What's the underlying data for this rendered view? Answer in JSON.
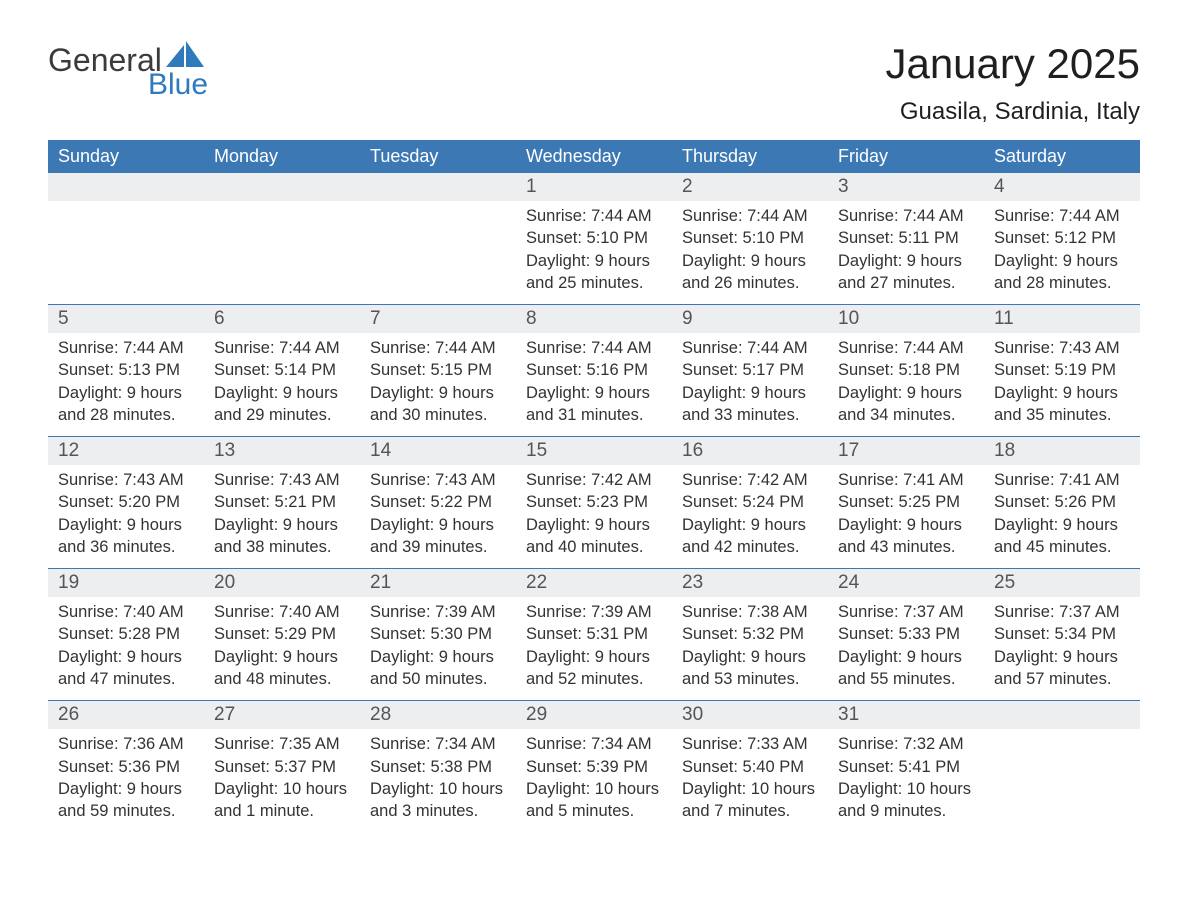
{
  "logo": {
    "word1": "General",
    "word2": "Blue",
    "sail_color": "#2f79bd"
  },
  "title": "January 2025",
  "location": "Guasila, Sardinia, Italy",
  "colors": {
    "header_bg": "#3c78b4",
    "header_text": "#ffffff",
    "daynum_bg": "#eceeef",
    "text": "#333333",
    "rule": "#3c78b4"
  },
  "day_headers": [
    "Sunday",
    "Monday",
    "Tuesday",
    "Wednesday",
    "Thursday",
    "Friday",
    "Saturday"
  ],
  "weeks": [
    [
      null,
      null,
      null,
      {
        "n": "1",
        "sunrise": "7:44 AM",
        "sunset": "5:10 PM",
        "daylight": "9 hours and 25 minutes."
      },
      {
        "n": "2",
        "sunrise": "7:44 AM",
        "sunset": "5:10 PM",
        "daylight": "9 hours and 26 minutes."
      },
      {
        "n": "3",
        "sunrise": "7:44 AM",
        "sunset": "5:11 PM",
        "daylight": "9 hours and 27 minutes."
      },
      {
        "n": "4",
        "sunrise": "7:44 AM",
        "sunset": "5:12 PM",
        "daylight": "9 hours and 28 minutes."
      }
    ],
    [
      {
        "n": "5",
        "sunrise": "7:44 AM",
        "sunset": "5:13 PM",
        "daylight": "9 hours and 28 minutes."
      },
      {
        "n": "6",
        "sunrise": "7:44 AM",
        "sunset": "5:14 PM",
        "daylight": "9 hours and 29 minutes."
      },
      {
        "n": "7",
        "sunrise": "7:44 AM",
        "sunset": "5:15 PM",
        "daylight": "9 hours and 30 minutes."
      },
      {
        "n": "8",
        "sunrise": "7:44 AM",
        "sunset": "5:16 PM",
        "daylight": "9 hours and 31 minutes."
      },
      {
        "n": "9",
        "sunrise": "7:44 AM",
        "sunset": "5:17 PM",
        "daylight": "9 hours and 33 minutes."
      },
      {
        "n": "10",
        "sunrise": "7:44 AM",
        "sunset": "5:18 PM",
        "daylight": "9 hours and 34 minutes."
      },
      {
        "n": "11",
        "sunrise": "7:43 AM",
        "sunset": "5:19 PM",
        "daylight": "9 hours and 35 minutes."
      }
    ],
    [
      {
        "n": "12",
        "sunrise": "7:43 AM",
        "sunset": "5:20 PM",
        "daylight": "9 hours and 36 minutes."
      },
      {
        "n": "13",
        "sunrise": "7:43 AM",
        "sunset": "5:21 PM",
        "daylight": "9 hours and 38 minutes."
      },
      {
        "n": "14",
        "sunrise": "7:43 AM",
        "sunset": "5:22 PM",
        "daylight": "9 hours and 39 minutes."
      },
      {
        "n": "15",
        "sunrise": "7:42 AM",
        "sunset": "5:23 PM",
        "daylight": "9 hours and 40 minutes."
      },
      {
        "n": "16",
        "sunrise": "7:42 AM",
        "sunset": "5:24 PM",
        "daylight": "9 hours and 42 minutes."
      },
      {
        "n": "17",
        "sunrise": "7:41 AM",
        "sunset": "5:25 PM",
        "daylight": "9 hours and 43 minutes."
      },
      {
        "n": "18",
        "sunrise": "7:41 AM",
        "sunset": "5:26 PM",
        "daylight": "9 hours and 45 minutes."
      }
    ],
    [
      {
        "n": "19",
        "sunrise": "7:40 AM",
        "sunset": "5:28 PM",
        "daylight": "9 hours and 47 minutes."
      },
      {
        "n": "20",
        "sunrise": "7:40 AM",
        "sunset": "5:29 PM",
        "daylight": "9 hours and 48 minutes."
      },
      {
        "n": "21",
        "sunrise": "7:39 AM",
        "sunset": "5:30 PM",
        "daylight": "9 hours and 50 minutes."
      },
      {
        "n": "22",
        "sunrise": "7:39 AM",
        "sunset": "5:31 PM",
        "daylight": "9 hours and 52 minutes."
      },
      {
        "n": "23",
        "sunrise": "7:38 AM",
        "sunset": "5:32 PM",
        "daylight": "9 hours and 53 minutes."
      },
      {
        "n": "24",
        "sunrise": "7:37 AM",
        "sunset": "5:33 PM",
        "daylight": "9 hours and 55 minutes."
      },
      {
        "n": "25",
        "sunrise": "7:37 AM",
        "sunset": "5:34 PM",
        "daylight": "9 hours and 57 minutes."
      }
    ],
    [
      {
        "n": "26",
        "sunrise": "7:36 AM",
        "sunset": "5:36 PM",
        "daylight": "9 hours and 59 minutes."
      },
      {
        "n": "27",
        "sunrise": "7:35 AM",
        "sunset": "5:37 PM",
        "daylight": "10 hours and 1 minute."
      },
      {
        "n": "28",
        "sunrise": "7:34 AM",
        "sunset": "5:38 PM",
        "daylight": "10 hours and 3 minutes."
      },
      {
        "n": "29",
        "sunrise": "7:34 AM",
        "sunset": "5:39 PM",
        "daylight": "10 hours and 5 minutes."
      },
      {
        "n": "30",
        "sunrise": "7:33 AM",
        "sunset": "5:40 PM",
        "daylight": "10 hours and 7 minutes."
      },
      {
        "n": "31",
        "sunrise": "7:32 AM",
        "sunset": "5:41 PM",
        "daylight": "10 hours and 9 minutes."
      },
      null
    ]
  ],
  "labels": {
    "sunrise": "Sunrise:",
    "sunset": "Sunset:",
    "daylight": "Daylight:"
  }
}
